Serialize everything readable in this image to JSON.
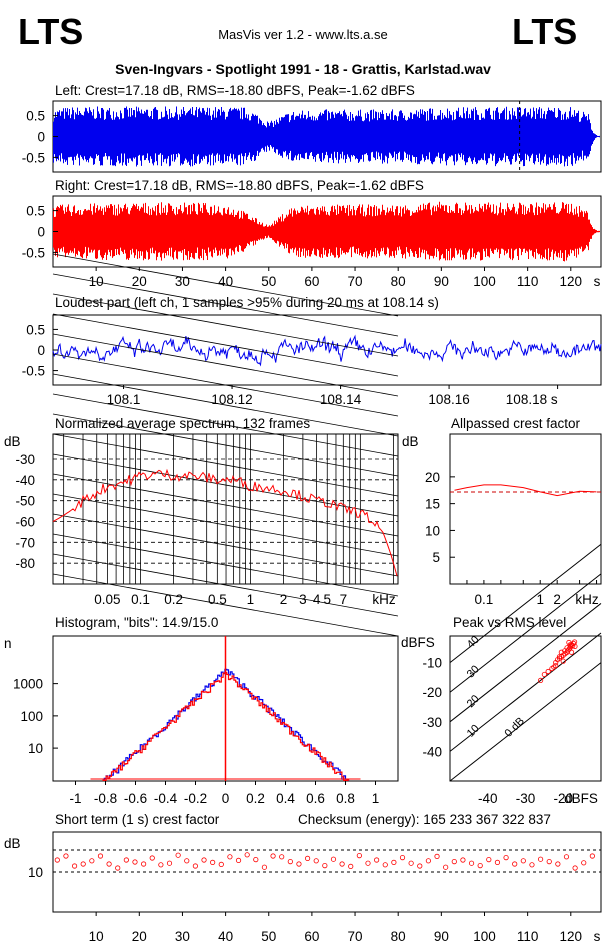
{
  "header": {
    "logo_left": "LTS",
    "logo_right": "LTS",
    "app_title": "MasVis ver 1.2 - www.lts.a.se",
    "file_title": "Sven-Ingvars - Spotlight 1991 - 18 - Grattis, Karlstad.wav"
  },
  "colors": {
    "left": "#0000ee",
    "right": "#ff0000",
    "accent_marker": "#cc0000"
  },
  "panels": {
    "left_wave": {
      "title": "Left: Crest=17.18 dB, RMS=-18.80 dBFS, Peak=-1.62 dBFS"
    },
    "right_wave": {
      "title": "Right: Crest=17.18 dB, RMS=-18.80 dBFS, Peak=-1.62 dBFS"
    },
    "loudest": {
      "title": "Loudest part (left  ch, 1 samples >95% during 20 ms at 108.14 s)"
    },
    "spectrum": {
      "title": "Normalized average spectrum, 132 frames",
      "ylabel": "dB",
      "xunit": "kHz"
    },
    "allpass": {
      "title": "Allpassed crest factor",
      "ylabel": "dB",
      "xunit": "kHz"
    },
    "histogram": {
      "title": "Histogram, \"bits\": 14.9/15.0",
      "ylabel": "n"
    },
    "peak_rms": {
      "title": "Peak vs RMS level",
      "ylabel": "dBFS",
      "xunit": "dBFS"
    },
    "crest_short": {
      "title": "Short term (1 s) crest factor",
      "checksum": "Checksum (energy):   165 233 367 322 837",
      "ylabel": "dB"
    }
  },
  "chart_data": [
    {
      "id": "left_waveform",
      "type": "area",
      "title": "Left: Crest=17.18 dB, RMS=-18.80 dBFS, Peak=-1.62 dBFS",
      "xlim": [
        0,
        127
      ],
      "ylim": [
        -0.85,
        0.85
      ],
      "yticks": [
        "0.5",
        "0",
        "-0.5"
      ],
      "ytick_values": [
        0.5,
        0,
        -0.5
      ],
      "marker_x": 108.14,
      "envelope_t": [
        0,
        2,
        5,
        10,
        20,
        30,
        40,
        45,
        48,
        50,
        55,
        60,
        70,
        80,
        90,
        100,
        110,
        120,
        124,
        125,
        126
      ],
      "envelope_amp": [
        0.65,
        0.7,
        0.72,
        0.72,
        0.72,
        0.72,
        0.72,
        0.7,
        0.5,
        0.35,
        0.62,
        0.65,
        0.65,
        0.65,
        0.7,
        0.72,
        0.72,
        0.72,
        0.55,
        0.15,
        0.02
      ],
      "series": [
        {
          "color": "#0000ee"
        }
      ]
    },
    {
      "id": "right_waveform",
      "type": "area",
      "title": "Right: Crest=17.18 dB, RMS=-18.80 dBFS, Peak=-1.62 dBFS",
      "xlim": [
        0,
        127
      ],
      "ylim": [
        -0.85,
        0.85
      ],
      "yticks": [
        "0.5",
        "0",
        "-0.5"
      ],
      "ytick_values": [
        0.5,
        0,
        -0.5
      ],
      "xticks": [
        "10",
        "20",
        "30",
        "40",
        "50",
        "60",
        "70",
        "80",
        "90",
        "100",
        "110",
        "120",
        "s"
      ],
      "xtick_values": [
        10,
        20,
        30,
        40,
        50,
        60,
        70,
        80,
        90,
        100,
        110,
        120
      ],
      "envelope_t": [
        0,
        2,
        5,
        10,
        20,
        30,
        40,
        45,
        48,
        50,
        55,
        60,
        70,
        80,
        90,
        100,
        110,
        120,
        124,
        125,
        126
      ],
      "envelope_amp": [
        0.6,
        0.65,
        0.66,
        0.68,
        0.7,
        0.7,
        0.68,
        0.45,
        0.25,
        0.15,
        0.6,
        0.65,
        0.65,
        0.65,
        0.72,
        0.7,
        0.7,
        0.72,
        0.5,
        0.1,
        0.02
      ],
      "series": [
        {
          "color": "#ff0000"
        }
      ]
    },
    {
      "id": "loudest_part",
      "type": "line",
      "title": "Loudest part (left  ch, 1 samples >95% during 20 ms at 108.14 s)",
      "xlim": [
        108.087,
        108.188
      ],
      "ylim": [
        -0.85,
        0.85
      ],
      "yticks": [
        "0.5",
        "0",
        "-0.5"
      ],
      "ytick_values": [
        0.5,
        0,
        -0.5
      ],
      "xticks": [
        "108.1",
        "108.12",
        "108.14",
        "108.16",
        "108.18 s"
      ],
      "xtick_values": [
        108.1,
        108.12,
        108.14,
        108.16,
        108.18
      ],
      "series": [
        {
          "color": "#0000ee"
        }
      ]
    },
    {
      "id": "avg_spectrum",
      "type": "line",
      "title": "Normalized average spectrum, 132 frames",
      "xscale": "log",
      "xlim_khz": [
        0.016,
        22
      ],
      "ylim": [
        -90,
        -18
      ],
      "ylabel": "dB",
      "yticks": [
        "-30",
        "-40",
        "-50",
        "-60",
        "-70",
        "-80"
      ],
      "ytick_values": [
        -30,
        -40,
        -50,
        -60,
        -70,
        -80
      ],
      "xticks": [
        "0.05",
        "0.1",
        "0.2",
        "0.5",
        "1",
        "2",
        "3",
        "4",
        "5",
        "7",
        "kHz"
      ],
      "xtick_values": [
        0.05,
        0.1,
        0.2,
        0.5,
        1,
        2,
        3,
        4,
        5,
        7
      ],
      "series": [
        {
          "color": "#ff0000",
          "f_khz": [
            0.016,
            0.02,
            0.03,
            0.04,
            0.05,
            0.07,
            0.1,
            0.15,
            0.2,
            0.3,
            0.5,
            0.7,
            1,
            1.5,
            2,
            3,
            4,
            5,
            7,
            10,
            13,
            16,
            19,
            22
          ],
          "db": [
            -60,
            -57,
            -50,
            -46,
            -43,
            -41,
            -38,
            -37,
            -38,
            -38,
            -40,
            -40,
            -43,
            -44,
            -45,
            -48,
            -50,
            -51,
            -54,
            -56,
            -60,
            -65,
            -76,
            -88
          ]
        }
      ]
    },
    {
      "id": "allpass_crest",
      "type": "line",
      "title": "Allpassed crest factor",
      "xscale": "log",
      "ylabel": "dB",
      "ylim": [
        0,
        28
      ],
      "yticks": [
        "20",
        "15",
        "10",
        "5"
      ],
      "ytick_values": [
        20,
        15,
        10,
        5
      ],
      "xticks": [
        "0.1",
        "1",
        "2",
        "kHz"
      ],
      "xtick_values": [
        0.1,
        1,
        2
      ],
      "reference_db": 17.18,
      "series": [
        {
          "color": "#ff0000",
          "f_khz": [
            0.03,
            0.05,
            0.1,
            0.2,
            0.5,
            1,
            2,
            5,
            10
          ],
          "db": [
            17.5,
            18,
            18.5,
            18.5,
            18,
            17.2,
            16.5,
            17.3,
            17.2
          ]
        }
      ]
    },
    {
      "id": "histogram",
      "type": "line",
      "title": "Histogram, \"bits\": 14.9/15.0",
      "yscale": "log",
      "ylabel": "n",
      "ylim": [
        1,
        30000
      ],
      "xlim": [
        -1.15,
        1.15
      ],
      "yticks": [
        "1000",
        "100",
        "10"
      ],
      "ytick_values": [
        1000,
        100,
        10
      ],
      "xticks": [
        "-1",
        "-0.8",
        "-0.6",
        "-0.4",
        "-0.2",
        "0",
        "0.2",
        "0.4",
        "0.6",
        "0.8",
        "1"
      ],
      "xtick_values": [
        -1,
        -0.8,
        -0.6,
        -0.4,
        -0.2,
        0,
        0.2,
        0.4,
        0.6,
        0.8,
        1
      ],
      "series": [
        {
          "color": "#0000ee",
          "peak": 2600,
          "half_width": 0.78
        },
        {
          "color": "#ff0000",
          "peak": 2100,
          "half_width": 0.8,
          "center_spike": 30000
        }
      ]
    },
    {
      "id": "peak_vs_rms",
      "type": "scatter",
      "title": "Peak vs RMS level",
      "xlim": [
        -50,
        -10
      ],
      "ylim": [
        -50,
        -1
      ],
      "xlabel": "dBFS",
      "ylabel": "dBFS",
      "xticks": [
        "-40",
        "-30",
        "-20",
        "dBFS"
      ],
      "xtick_values": [
        -40,
        -30,
        -20
      ],
      "yticks": [
        "-10",
        "-20",
        "-30",
        "-40"
      ],
      "ytick_values": [
        -10,
        -20,
        -30,
        -40
      ],
      "crest_lines": [
        "40",
        "30",
        "20",
        "10",
        "0 dB"
      ],
      "crest_line_values": [
        40,
        30,
        20,
        10,
        0
      ],
      "series": [
        {
          "color": "#ff0000",
          "rms": [
            -26,
            -25,
            -24,
            -23,
            -22.5,
            -22,
            -21.5,
            -21,
            -20.5,
            -20,
            -19.5,
            -19,
            -18.8,
            -18.5,
            -18.2,
            -18,
            -17.8,
            -17.5,
            -17.3,
            -17,
            -20,
            -21,
            -22,
            -19,
            -18.5,
            -17.8,
            -19.6,
            -20.5,
            -18.2,
            -16.9
          ],
          "peak": [
            -16,
            -14,
            -13,
            -12,
            -11.5,
            -10,
            -9,
            -8.5,
            -8,
            -7.5,
            -7,
            -6.5,
            -6,
            -5.5,
            -5,
            -4.5,
            -4,
            -4.3,
            -3.5,
            -3,
            -9.5,
            -8,
            -11,
            -5,
            -3.2,
            -6.5,
            -6,
            -6.5,
            -4,
            -4.5
          ]
        }
      ]
    },
    {
      "id": "short_term_crest",
      "type": "scatter",
      "title": "Short term (1 s) crest factor",
      "xlim": [
        0,
        127
      ],
      "ylim": [
        0,
        20
      ],
      "ylabel": "dB",
      "yticks": [
        "10"
      ],
      "ytick_values": [
        10
      ],
      "xticks": [
        "10",
        "20",
        "30",
        "40",
        "50",
        "60",
        "70",
        "80",
        "90",
        "100",
        "110",
        "120",
        "s"
      ],
      "xtick_values": [
        10,
        20,
        30,
        40,
        50,
        60,
        70,
        80,
        90,
        100,
        110,
        120
      ],
      "ref_lines": [
        15.5,
        10
      ],
      "series": [
        {
          "color": "#ff0000",
          "t": [
            1,
            3,
            5,
            7,
            9,
            11,
            13,
            15,
            17,
            19,
            21,
            23,
            25,
            27,
            29,
            31,
            33,
            35,
            37,
            39,
            41,
            43,
            45,
            47,
            49,
            51,
            53,
            55,
            57,
            59,
            61,
            63,
            65,
            67,
            69,
            71,
            73,
            75,
            77,
            79,
            81,
            83,
            85,
            87,
            89,
            91,
            93,
            95,
            97,
            99,
            101,
            103,
            105,
            107,
            109,
            111,
            113,
            115,
            117,
            119,
            121,
            123,
            125
          ],
          "db": [
            13,
            14,
            11.5,
            12,
            12.8,
            14,
            12,
            11,
            13,
            12.5,
            12,
            13.5,
            11.8,
            12.2,
            14.2,
            12.8,
            11.5,
            13,
            12.4,
            11.9,
            13.8,
            12.9,
            14.3,
            13.1,
            11.2,
            14,
            13.8,
            12.6,
            12,
            13.4,
            12.8,
            11.6,
            13.2,
            12,
            11.4,
            14.1,
            12.2,
            13,
            11.8,
            12.4,
            13.6,
            12.2,
            11.5,
            12.8,
            13.9,
            11.2,
            12.6,
            13,
            12.2,
            11.6,
            13.1,
            12.4,
            13.6,
            12,
            12.8,
            11.8,
            13.2,
            12.6,
            12,
            13.8,
            11,
            12.3,
            14
          ]
        }
      ]
    }
  ]
}
